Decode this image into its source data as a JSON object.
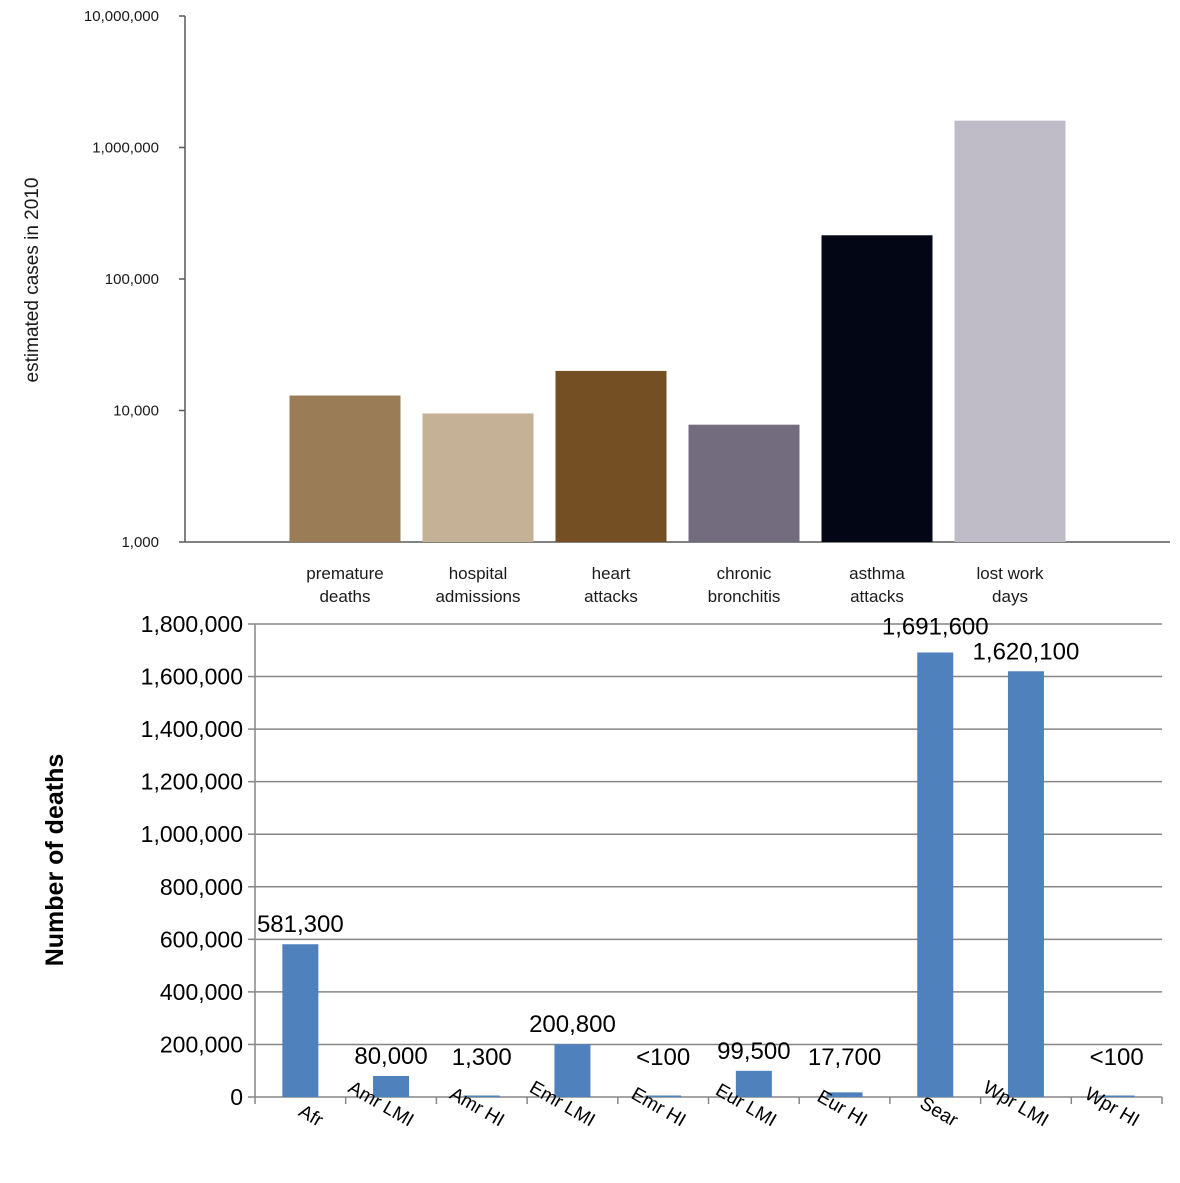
{
  "chart_data": [
    {
      "type": "bar",
      "title": "",
      "xlabel": "",
      "ylabel": "estimated cases in 2010",
      "yscale": "log",
      "ylim": [
        1000,
        10000000
      ],
      "ytick_labels": [
        "1,000",
        "10,000",
        "100,000",
        "1,000,000",
        "10,000,000"
      ],
      "ytick_values": [
        1000,
        10000,
        100000,
        1000000,
        10000000
      ],
      "grid": false,
      "categories": [
        {
          "line1": "premature",
          "line2": "deaths"
        },
        {
          "line1": "hospital",
          "line2": "admissions"
        },
        {
          "line1": "heart",
          "line2": "attacks"
        },
        {
          "line1": "chronic",
          "line2": "bronchitis"
        },
        {
          "line1": "asthma",
          "line2": "attacks"
        },
        {
          "line1": "lost work",
          "line2": "days"
        }
      ],
      "values": [
        13000,
        9500,
        20000,
        7800,
        215000,
        1600000
      ],
      "colors": [
        "#9a7c56",
        "#c4b196",
        "#744f24",
        "#736c7f",
        "#030614",
        "#bfbcc8"
      ]
    },
    {
      "type": "bar",
      "title": "",
      "xlabel": "",
      "ylabel": "Number of deaths",
      "ylim": [
        0,
        1800000
      ],
      "ytick_labels": [
        "0",
        "200,000",
        "400,000",
        "600,000",
        "800,000",
        "1,000,000",
        "1,200,000",
        "1,400,000",
        "1,600,000",
        "1,800,000"
      ],
      "ytick_values": [
        0,
        200000,
        400000,
        600000,
        800000,
        1000000,
        1200000,
        1400000,
        1600000,
        1800000
      ],
      "grid": true,
      "categories": [
        "Afr",
        "Amr LMI",
        "Amr HI",
        "Emr LMI",
        "Emr HI",
        "Eur LMI",
        "Eur HI",
        "Sear",
        "Wpr LMI",
        "Wpr HI"
      ],
      "values": [
        581300,
        80000,
        1300,
        200800,
        100,
        99500,
        17700,
        1691600,
        1620100,
        100
      ],
      "data_labels": [
        "581,300",
        "80,000",
        "1,300",
        "200,800",
        "<100",
        "99,500",
        "17,700",
        "1,691,600",
        "1,620,100",
        "<100"
      ],
      "color": "#4f81bd"
    }
  ]
}
